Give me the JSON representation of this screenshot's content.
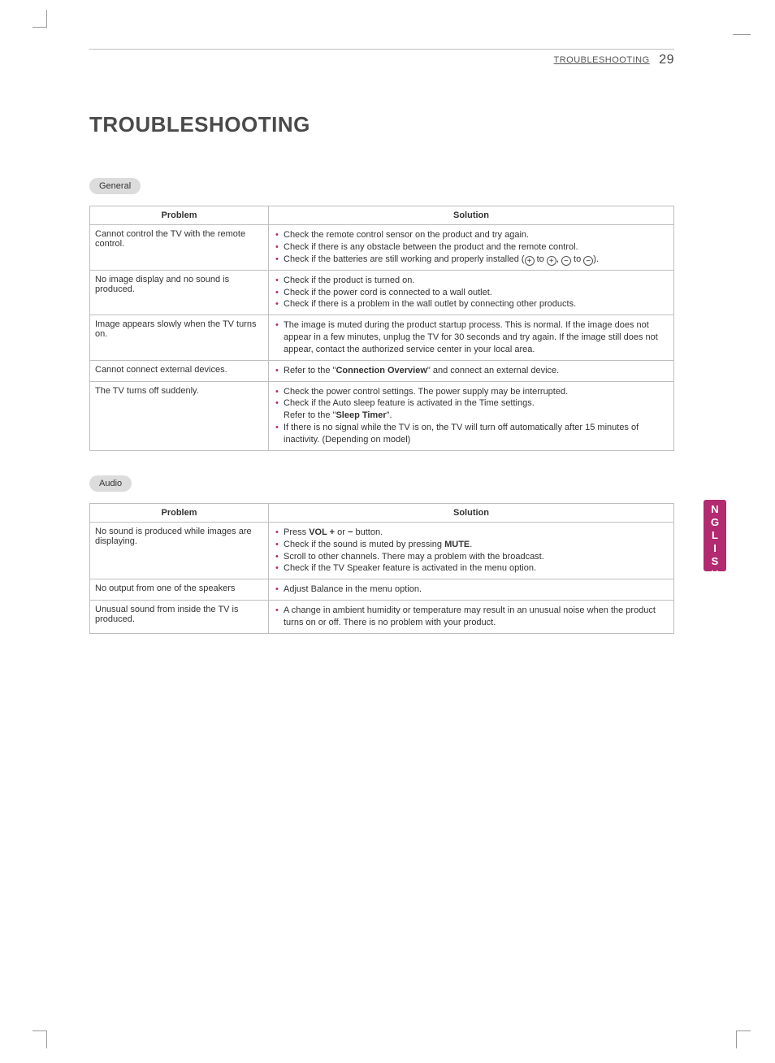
{
  "colors": {
    "accent": "#b22a6f",
    "border": "#bfbfbf",
    "pill_bg": "#dcdcdc",
    "text": "#333333",
    "header_text": "#555555",
    "title_text": "#4a4a4a"
  },
  "header": {
    "section": "TROUBLESHOOTING",
    "page_number": "29"
  },
  "title": "TROUBLESHOOTING",
  "language_tab": "ENGLISH",
  "sections": [
    {
      "label": "General",
      "columns": {
        "problem": "Problem",
        "solution": "Solution"
      },
      "rows": [
        {
          "problem": "Cannot control the TV with the remote control.",
          "solutions": [
            {
              "text": "Check the remote control sensor on the product and try again."
            },
            {
              "text": "Check if there is any obstacle between the product and the remote control."
            },
            {
              "html": "Check if the batteries are still working and properly installed (<span class='circ'>+</span> to <span class='circ'>+</span>, <span class='circ'>−</span> to <span class='circ'>−</span>)."
            }
          ]
        },
        {
          "problem": "No image display and no sound is produced.",
          "solutions": [
            {
              "text": "Check if the product is turned on."
            },
            {
              "text": "Check if the power cord is connected to a wall outlet."
            },
            {
              "text": "Check if there is a problem in the wall outlet by connecting other products."
            }
          ]
        },
        {
          "problem": "Image appears slowly when the TV turns on.",
          "solutions": [
            {
              "text": "The image is muted during the product startup process. This is normal. If the image does not appear in a few minutes, unplug the TV for 30 seconds and try again. If the image still does not appear, contact the authorized service center in your local area."
            }
          ]
        },
        {
          "problem": "Cannot connect external devices.",
          "solutions": [
            {
              "html": "Refer to the \"<b>Connection Overview</b>\" and connect an external device."
            }
          ]
        },
        {
          "problem": "The TV turns off suddenly.",
          "solutions": [
            {
              "text": "Check the power control settings. The power supply may be interrupted."
            },
            {
              "html": "Check if the Auto sleep feature is activated in the Time settings.<br>Refer to the \"<b>Sleep Timer</b>\"."
            },
            {
              "text": "If there is no signal while the TV is on, the TV will turn off automatically after 15 minutes of inactivity. (Depending on model)"
            }
          ]
        }
      ]
    },
    {
      "label": "Audio",
      "columns": {
        "problem": "Problem",
        "solution": "Solution"
      },
      "rows": [
        {
          "problem": "No sound is produced while images are displaying.",
          "solutions": [
            {
              "html": "Press <b>VOL +</b> or <b>−</b> button."
            },
            {
              "html": "Check if the sound is muted by pressing <b>MUTE</b>."
            },
            {
              "text": "Scroll to other channels. There may a problem with the broadcast."
            },
            {
              "text": "Check if the TV Speaker feature is activated in the menu option."
            }
          ]
        },
        {
          "problem": "No output from one of the speakers",
          "solutions": [
            {
              "text": "Adjust Balance in the menu option."
            }
          ]
        },
        {
          "problem": "Unusual sound from inside the TV is produced.",
          "solutions": [
            {
              "text": "A change in ambient humidity or temperature may result in an unusual noise when the product turns on or off. There is no problem with your product."
            }
          ]
        }
      ]
    }
  ]
}
